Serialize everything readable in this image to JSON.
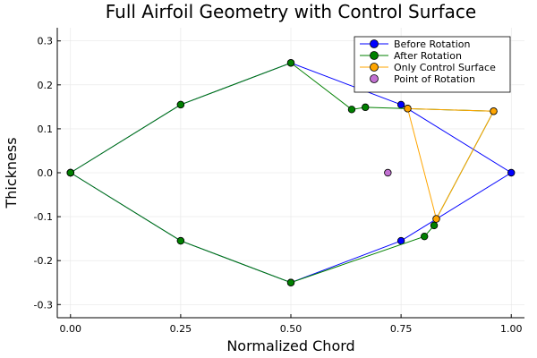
{
  "chart_data": {
    "type": "line",
    "title": "Full Airfoil Geometry with Control Surface",
    "xlabel": "Normalized Chord",
    "ylabel": "Thickness",
    "xlim": [
      -0.03,
      1.03
    ],
    "ylim": [
      -0.33,
      0.33
    ],
    "xticks": [
      0.0,
      0.25,
      0.5,
      0.75,
      1.0
    ],
    "xtick_labels": [
      "0.00",
      "0.25",
      "0.50",
      "0.75",
      "1.00"
    ],
    "yticks": [
      -0.3,
      -0.2,
      -0.1,
      0.0,
      0.1,
      0.2,
      0.3
    ],
    "ytick_labels": [
      "-0.3",
      "-0.2",
      "-0.1",
      "0.0",
      "0.1",
      "0.2",
      "0.3"
    ],
    "grid": true,
    "legend_position": "top-right",
    "series": [
      {
        "name": "Before Rotation",
        "color": "#0000ff",
        "mode": "lines+markers",
        "points": [
          [
            0.0,
            0.0
          ],
          [
            0.25,
            0.155
          ],
          [
            0.5,
            0.25
          ],
          [
            0.75,
            0.155
          ],
          [
            1.0,
            0.0
          ],
          [
            0.75,
            -0.155
          ],
          [
            0.5,
            -0.25
          ],
          [
            0.25,
            -0.155
          ],
          [
            0.0,
            0.0
          ]
        ]
      },
      {
        "name": "After Rotation",
        "color": "#008000",
        "mode": "lines+markers",
        "points": [
          [
            0.0,
            0.0
          ],
          [
            0.25,
            0.155
          ],
          [
            0.5,
            0.25
          ],
          [
            0.638,
            0.144
          ],
          [
            0.669,
            0.149
          ],
          [
            0.765,
            0.146
          ],
          [
            0.96,
            0.14
          ],
          [
            0.83,
            -0.105
          ],
          [
            0.825,
            -0.12
          ],
          [
            0.803,
            -0.145
          ],
          [
            0.5,
            -0.25
          ],
          [
            0.25,
            -0.155
          ],
          [
            0.0,
            0.0
          ]
        ]
      },
      {
        "name": "Only Control Surface",
        "color": "#ffa500",
        "mode": "lines+markers",
        "points": [
          [
            0.765,
            0.146
          ],
          [
            0.96,
            0.14
          ],
          [
            0.83,
            -0.105
          ],
          [
            0.765,
            0.146
          ]
        ]
      },
      {
        "name": "Point of Rotation",
        "color": "#c271d2",
        "mode": "markers",
        "points": [
          [
            0.72,
            0.0
          ]
        ]
      }
    ]
  }
}
